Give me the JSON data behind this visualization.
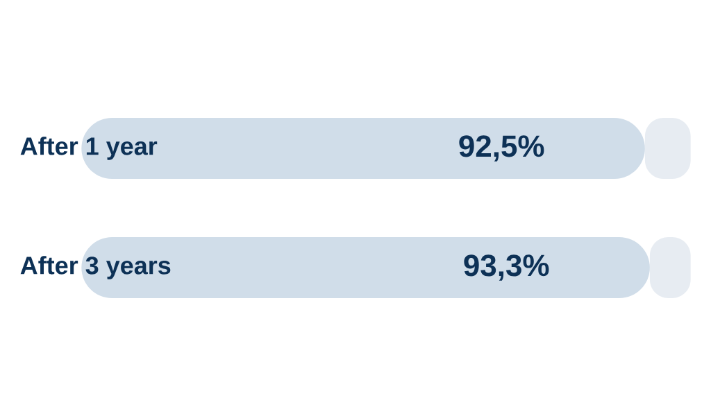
{
  "chart_data": {
    "type": "bar",
    "orientation": "horizontal",
    "categories": [
      "After 1 year",
      "After 3 years"
    ],
    "xlim": [
      0,
      100
    ],
    "tick_labels": "y",
    "stacked": true,
    "series": [
      {
        "color": "#d0dde9",
        "values": [
          92.5,
          93.3
        ],
        "value_labels": [
          "92,5%",
          "93,3%"
        ]
      },
      {
        "color": "#e7ecf2",
        "values": [
          7.5,
          6.7
        ]
      }
    ]
  }
}
